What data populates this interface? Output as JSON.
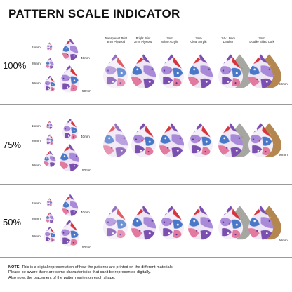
{
  "title": "PATTERN SCALE INDICATOR",
  "columns": [
    {
      "line1": "Transparent Print",
      "line2": "3mm Plywood"
    },
    {
      "line1": "Bright Print",
      "line2": "3mm Plywood"
    },
    {
      "line1": "3mm",
      "line2": "White Acrylic"
    },
    {
      "line1": "3mm",
      "line2": "Clear Acrylic"
    },
    {
      "line1": "1.6-1.8mm",
      "line2": "Leather"
    },
    {
      "line1": "2mm",
      "line2": "Double Sided Cork"
    }
  ],
  "rows": [
    {
      "label": "100%",
      "sizes": [
        "15mm",
        "20mm",
        "30mm",
        "40mm",
        "50mm"
      ],
      "ref_size": "60mm"
    },
    {
      "label": "75%",
      "sizes": [
        "15mm",
        "20mm",
        "30mm",
        "40mm",
        "50mm"
      ],
      "ref_size": "60mm"
    },
    {
      "label": "50%",
      "sizes": [
        "15mm",
        "20mm",
        "30mm",
        "40mm",
        "50mm"
      ],
      "ref_size": "60mm"
    }
  ],
  "note": {
    "label": "NOTE:",
    "line1": "This is a digital representation of how the patterns are printed on the different materials.",
    "line2": "Please be aware there are some characteristics that can't be represented digitally.",
    "line3": "Also note, the placement of the pattern varies on each shape."
  },
  "colors": {
    "purple": "#7a4fb0",
    "violet": "#a98ad8",
    "red": "#d8343c",
    "pink": "#e27aa0",
    "blue": "#4a78c9",
    "plywood": "#c9a983",
    "leather": "#a7a7a2",
    "cork": "#b58750"
  }
}
